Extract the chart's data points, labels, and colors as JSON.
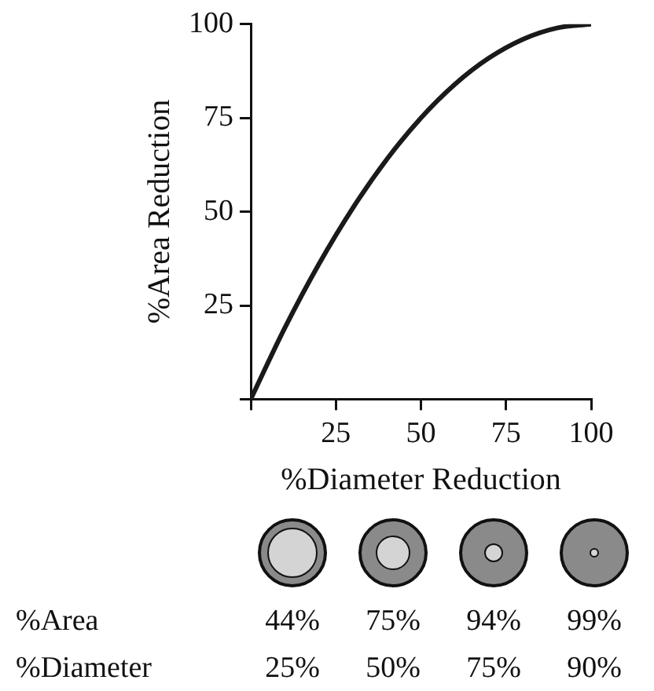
{
  "chart_data": {
    "type": "line",
    "xlabel": "%Diameter Reduction",
    "ylabel": "%Area Reduction",
    "x": [
      0,
      10,
      20,
      30,
      40,
      50,
      60,
      70,
      80,
      90,
      100
    ],
    "series": [
      {
        "color": "#1a1a1a",
        "values": [
          0,
          19,
          36,
          51,
          64,
          75,
          84,
          91,
          96,
          99,
          100
        ]
      }
    ],
    "xlim": [
      0,
      100
    ],
    "ylim": [
      0,
      100
    ],
    "xticks": [
      {
        "value": 0,
        "label": null
      },
      25,
      50,
      75,
      100
    ],
    "yticks": [
      {
        "value": 0,
        "label": null
      },
      25,
      50,
      75,
      100
    ],
    "grid": false,
    "legend": false,
    "marker": "none",
    "line_style": "solid",
    "annotations": [
      "%Area",
      "44%",
      "75%",
      "94%",
      "99%",
      "%Diameter",
      "25%",
      "50%",
      "75%",
      "90%"
    ]
  }
}
